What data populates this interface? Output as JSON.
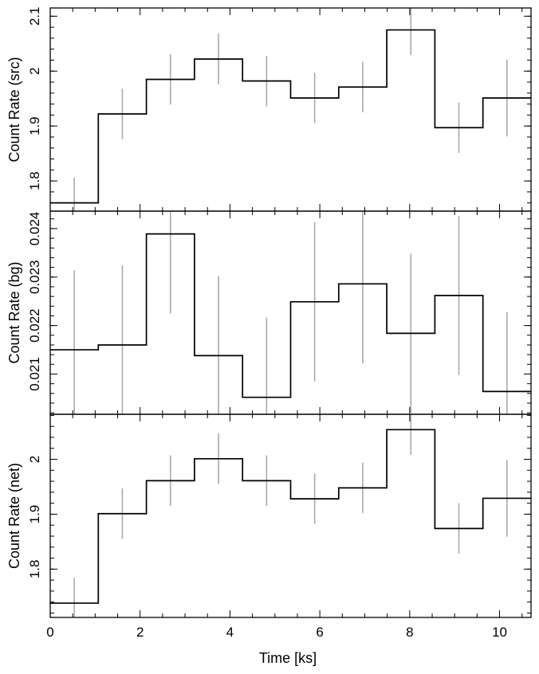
{
  "chart_data": [
    {
      "type": "line",
      "name": "src",
      "ylabel": "Count Rate (src)",
      "xlim": [
        0,
        10.7
      ],
      "ylim": [
        1.745,
        2.115
      ],
      "yticks": [
        1.8,
        1.9,
        2.0,
        2.1
      ],
      "ytick_labels": [
        "1.8",
        "1.9",
        "2",
        "2.1"
      ],
      "bin_edges": [
        0,
        1.07,
        2.14,
        3.21,
        4.28,
        5.35,
        6.42,
        7.49,
        8.56,
        9.63,
        10.7
      ],
      "x": [
        0.535,
        1.605,
        2.675,
        3.745,
        4.815,
        5.885,
        6.955,
        8.025,
        9.095,
        10.165
      ],
      "values": [
        1.76,
        1.922,
        1.985,
        2.022,
        1.982,
        1.951,
        1.971,
        2.075,
        1.897,
        1.951
      ],
      "errors": [
        0.046,
        0.046,
        0.046,
        0.046,
        0.046,
        0.046,
        0.046,
        0.046,
        0.046,
        0.07
      ],
      "line_color": "#000000",
      "error_color": "#aaaaaa"
    },
    {
      "type": "line",
      "name": "bg",
      "ylabel": "Count Rate (bg)",
      "xlim": [
        0,
        10.7
      ],
      "ylim": [
        0.02017,
        0.02436
      ],
      "yticks": [
        0.021,
        0.022,
        0.023,
        0.024
      ],
      "ytick_labels": [
        "0.021",
        "0.022",
        "0.023",
        "0.024"
      ],
      "bin_edges": [
        0,
        1.07,
        2.14,
        3.21,
        4.28,
        5.35,
        6.42,
        7.49,
        8.56,
        9.63,
        10.7
      ],
      "x": [
        0.535,
        1.605,
        2.675,
        3.745,
        4.815,
        5.885,
        6.955,
        8.025,
        9.095,
        10.165
      ],
      "values": [
        0.0215,
        0.0216,
        0.02389,
        0.02138,
        0.02052,
        0.02249,
        0.02286,
        0.02184,
        0.02262,
        0.02064
      ],
      "errors": [
        0.00164,
        0.00164,
        0.00164,
        0.00164,
        0.00164,
        0.00164,
        0.00164,
        0.00164,
        0.00164,
        0.00164
      ],
      "line_color": "#000000",
      "error_color": "#aaaaaa"
    },
    {
      "type": "line",
      "name": "net",
      "ylabel": "Count Rate (net)",
      "xlabel": "Time [ks]",
      "xlim": [
        0,
        10.7
      ],
      "ylim": [
        1.712,
        2.082
      ],
      "xticks": [
        0,
        2,
        4,
        6,
        8,
        10
      ],
      "xtick_labels": [
        "0",
        "2",
        "4",
        "6",
        "8",
        "10"
      ],
      "yticks": [
        1.8,
        1.9,
        2.0
      ],
      "ytick_labels": [
        "1.8",
        "1.9",
        "2"
      ],
      "bin_edges": [
        0,
        1.07,
        2.14,
        3.21,
        4.28,
        5.35,
        6.42,
        7.49,
        8.56,
        9.63,
        10.7
      ],
      "x": [
        0.535,
        1.605,
        2.675,
        3.745,
        4.815,
        5.885,
        6.955,
        8.025,
        9.095,
        10.165
      ],
      "values": [
        1.738,
        1.901,
        1.961,
        2.001,
        1.961,
        1.928,
        1.948,
        2.054,
        1.874,
        1.929
      ],
      "errors": [
        0.046,
        0.046,
        0.046,
        0.046,
        0.046,
        0.046,
        0.046,
        0.046,
        0.046,
        0.07
      ],
      "line_color": "#000000",
      "error_color": "#aaaaaa"
    }
  ]
}
